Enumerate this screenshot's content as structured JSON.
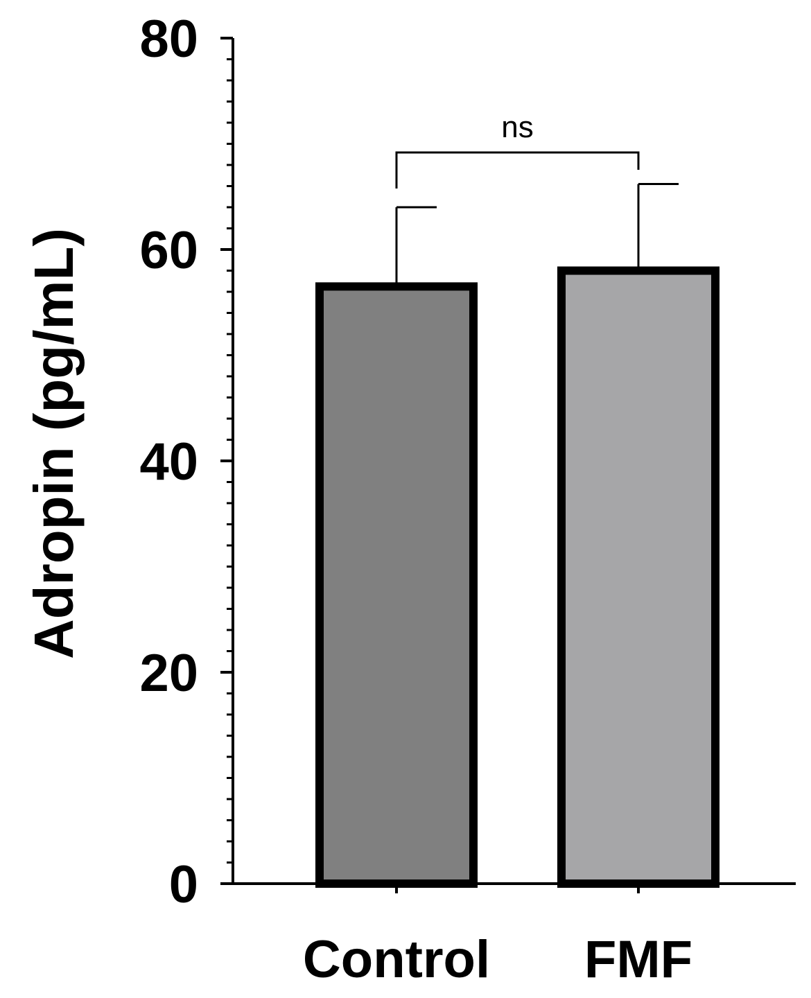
{
  "chart_data": {
    "type": "bar",
    "title": "",
    "xlabel": "",
    "ylabel": "Adropin (pg/mL)",
    "ylim": [
      0,
      80
    ],
    "yticks": [
      0,
      20,
      40,
      60,
      80
    ],
    "minor_tick_step": 2,
    "categories": [
      "Control",
      "FMF"
    ],
    "values": [
      56.5,
      58
    ],
    "errors": [
      7.5,
      8.2
    ],
    "bar_colors": [
      "#808080",
      "#a6a6a8"
    ],
    "edge_color": "#000000",
    "grid": false,
    "legend": "none",
    "annotations": [
      {
        "text": "ns",
        "between": [
          "Control",
          "FMF"
        ]
      }
    ]
  }
}
